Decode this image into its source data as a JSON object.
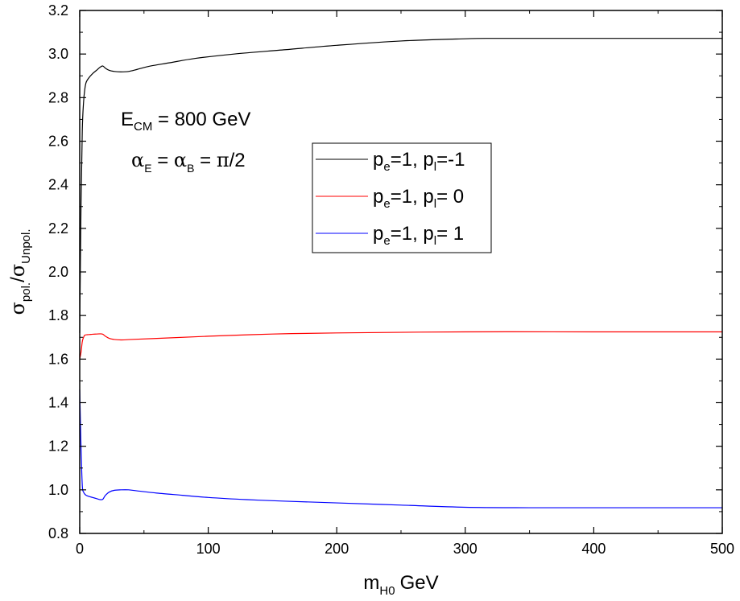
{
  "chart_data": {
    "type": "line",
    "xlabel": {
      "base": "m",
      "sub": "H0",
      "unit": "GeV"
    },
    "ylabel": {
      "sym1": "σ",
      "sub1": "pol.",
      "slash": "/",
      "sym2": "σ",
      "sub2": "Unpol."
    },
    "xlim": [
      0,
      500
    ],
    "ylim": [
      0.8,
      3.2
    ],
    "xticks": [
      0,
      100,
      200,
      300,
      400,
      500
    ],
    "yticks": [
      0.8,
      1.0,
      1.2,
      1.4,
      1.6,
      1.8,
      2.0,
      2.2,
      2.4,
      2.6,
      2.8,
      3.0,
      3.2
    ],
    "annotations": {
      "ecm": {
        "base": "E",
        "sub": "CM",
        "rest": " = 800 GeV"
      },
      "alpha": {
        "a1": "α",
        "s1": "E",
        "eq1": " = ",
        "a2": "α",
        "s2": "B",
        "eq2": " = ",
        "pi": "π",
        "rest": "/2"
      }
    },
    "series": [
      {
        "name": "pe=1, pl=-1",
        "legend": {
          "p1": "p",
          "s1": "e",
          "mid": "=1, p",
          "s2": "l",
          "end": "=-1"
        },
        "color": "#000000",
        "x": [
          0,
          1,
          2,
          3,
          4,
          5,
          7,
          10,
          13,
          16,
          18,
          20,
          23,
          27,
          32,
          38,
          45,
          55,
          70,
          90,
          120,
          160,
          200,
          250,
          300,
          320,
          350,
          400,
          450,
          500
        ],
        "y": [
          1.72,
          2.3,
          2.65,
          2.78,
          2.84,
          2.87,
          2.89,
          2.91,
          2.925,
          2.94,
          2.945,
          2.935,
          2.925,
          2.92,
          2.918,
          2.92,
          2.93,
          2.945,
          2.96,
          2.98,
          3.0,
          3.02,
          3.04,
          3.06,
          3.07,
          3.072,
          3.072,
          3.072,
          3.072,
          3.072
        ]
      },
      {
        "name": "pe=1, pl= 0",
        "legend": {
          "p1": "p",
          "s1": "e",
          "mid": "=1, p",
          "s2": "l",
          "end": "= 0"
        },
        "color": "#ff0000",
        "x": [
          0,
          1,
          2,
          3,
          4,
          6,
          8,
          10,
          13,
          16,
          18,
          20,
          23,
          27,
          32,
          40,
          60,
          100,
          150,
          200,
          300,
          400,
          500
        ],
        "y": [
          1.6,
          1.63,
          1.68,
          1.7,
          1.71,
          1.712,
          1.713,
          1.714,
          1.715,
          1.716,
          1.714,
          1.705,
          1.695,
          1.69,
          1.688,
          1.69,
          1.695,
          1.705,
          1.715,
          1.72,
          1.725,
          1.725,
          1.725
        ]
      },
      {
        "name": "pe=1, pl= 1",
        "legend": {
          "p1": "p",
          "s1": "e",
          "mid": "=1, p",
          "s2": "l",
          "end": "= 1"
        },
        "color": "#0000ff",
        "x": [
          0,
          1,
          2,
          3,
          4,
          5,
          7,
          10,
          13,
          16,
          18,
          20,
          23,
          27,
          32,
          38,
          45,
          60,
          80,
          100,
          130,
          160,
          200,
          250,
          300,
          350,
          400,
          450,
          500
        ],
        "y": [
          1.46,
          1.2,
          1.02,
          0.99,
          0.98,
          0.975,
          0.97,
          0.965,
          0.96,
          0.955,
          0.957,
          0.975,
          0.99,
          0.998,
          1.0,
          1.0,
          0.995,
          0.985,
          0.975,
          0.965,
          0.955,
          0.948,
          0.94,
          0.93,
          0.92,
          0.918,
          0.918,
          0.918,
          0.918
        ]
      }
    ]
  }
}
